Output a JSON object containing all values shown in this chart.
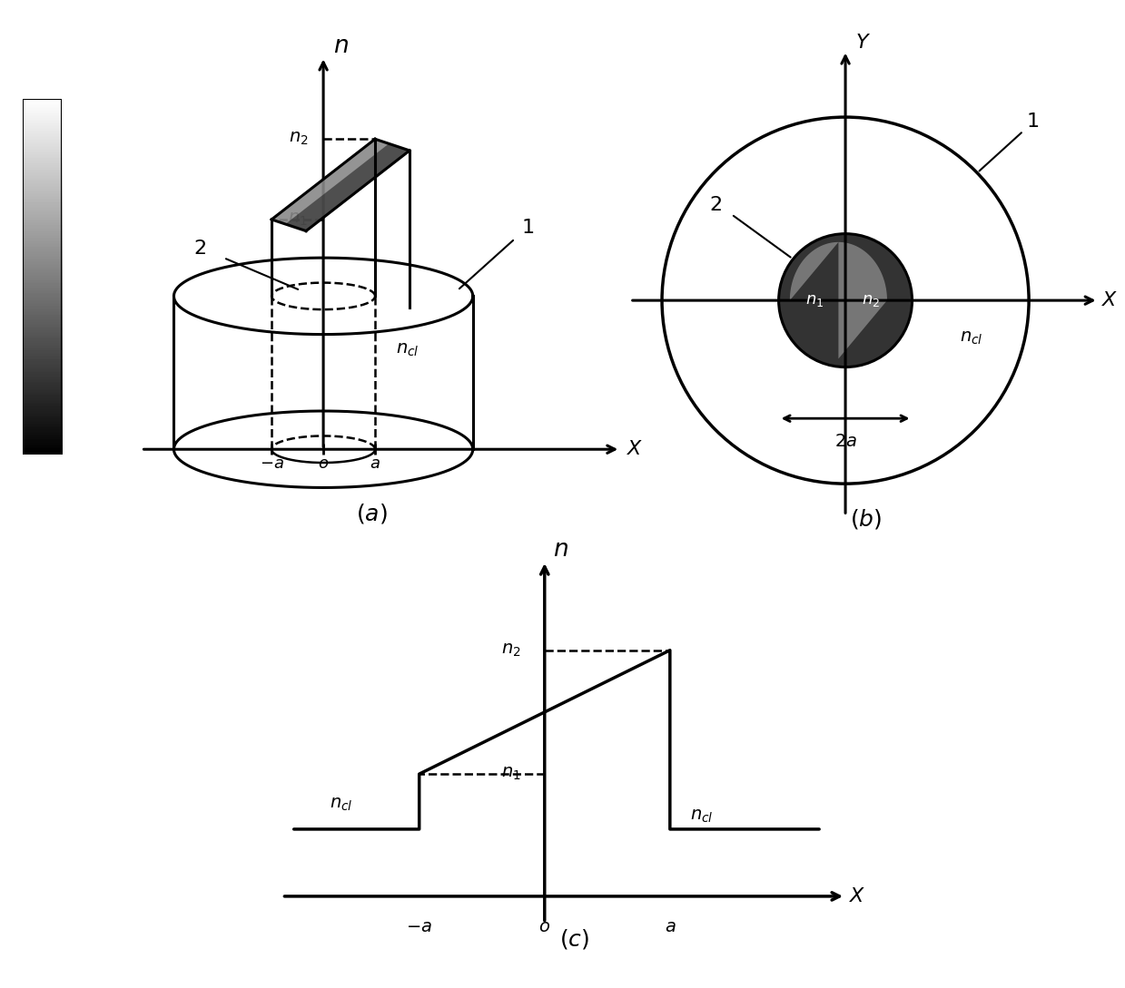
{
  "bg_color": "#ffffff",
  "fig_width": 12.39,
  "fig_height": 10.89,
  "lw_main": 2.2,
  "lw_dash": 1.8,
  "fs_label": 16,
  "fs_tick": 14,
  "fs_sub": 18,
  "cb_top_color": "#111111",
  "cb_bot_color": "#cccccc",
  "core_dark": "#333333",
  "core_light": "#aaaaaa",
  "ramp_face": "#888888",
  "ramp_dark": "#222222"
}
